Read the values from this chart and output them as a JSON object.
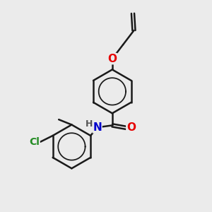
{
  "bg_color": "#ebebeb",
  "bond_color": "#1a1a1a",
  "bond_width": 1.8,
  "atom_colors": {
    "O": "#e60000",
    "N": "#0000cc",
    "Cl": "#228B22",
    "C": "#1a1a1a",
    "H": "#555555"
  },
  "font_size": 10,
  "fig_size": [
    3.0,
    3.0
  ],
  "xlim": [
    0,
    10
  ],
  "ylim": [
    0,
    10
  ]
}
